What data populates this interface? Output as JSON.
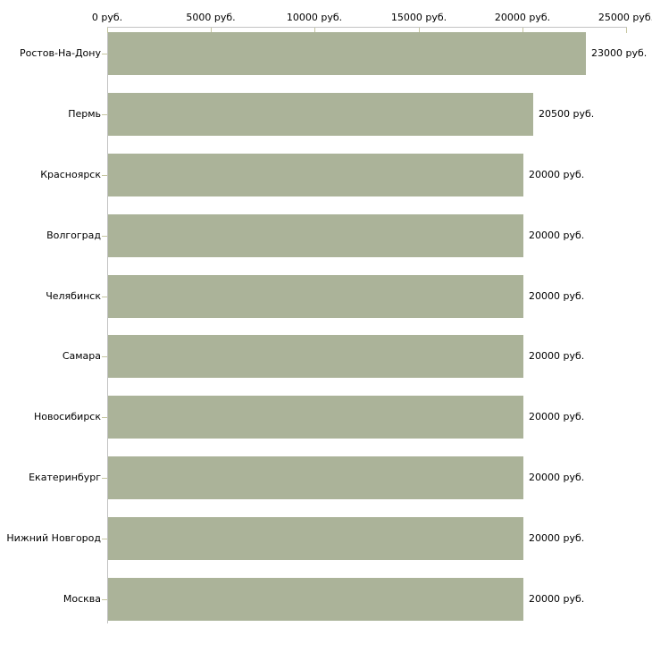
{
  "chart_data": {
    "type": "bar",
    "orientation": "horizontal",
    "title": "",
    "xlabel": "",
    "ylabel": "",
    "unit_suffix": " руб.",
    "xlim": [
      0,
      25000
    ],
    "grid": false,
    "legend": null,
    "x_ticks": {
      "values": [
        0,
        5000,
        10000,
        15000,
        20000,
        25000
      ],
      "labels": [
        "0 руб.",
        "5000 руб.",
        "10000 руб.",
        "15000 руб.",
        "20000 руб.",
        "25000 руб."
      ]
    },
    "categories": [
      "Ростов-На-Дону",
      "Пермь",
      "Красноярск",
      "Волгоград",
      "Челябинск",
      "Самара",
      "Новосибирск",
      "Екатеринбург",
      "Нижний Новгород",
      "Москва"
    ],
    "values": [
      23000,
      20500,
      20000,
      20000,
      20000,
      20000,
      20000,
      20000,
      20000,
      20000
    ],
    "value_labels": [
      "23000 руб.",
      "20500 руб.",
      "20000 руб.",
      "20000 руб.",
      "20000 руб.",
      "20000 руб.",
      "20000 руб.",
      "20000 руб.",
      "20000 руб.",
      "20000 руб."
    ],
    "colors": {
      "bar": "#abb399",
      "axis": "#c3c3c3",
      "tick": "#c6c6a0",
      "text": "#000000",
      "background": "#ffffff"
    }
  }
}
